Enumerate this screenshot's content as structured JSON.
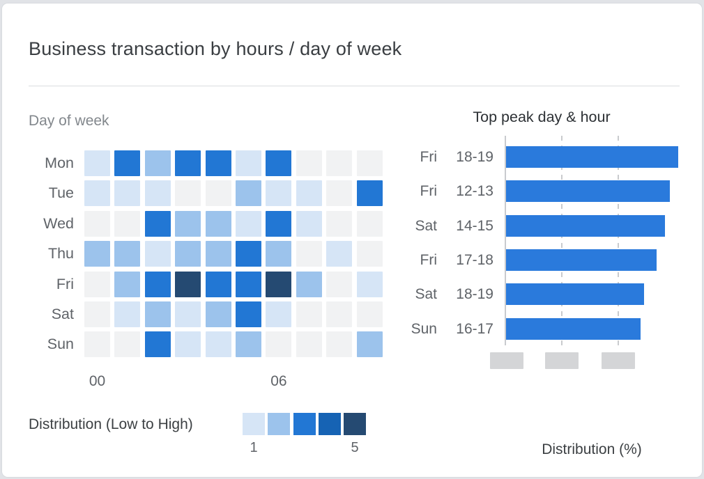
{
  "card": {
    "title": "Business transaction by hours / day of week"
  },
  "colors": {
    "bar_blue": "#2a7adc",
    "heatmap_palette": [
      "#d6e5f6",
      "#9cc3ec",
      "#2277d4",
      "#1663b4",
      "#254a72"
    ],
    "heatmap_empty": "#f1f2f3",
    "placeholder_gray": "#d4d5d7"
  },
  "chart_data": [
    {
      "type": "heatmap",
      "title": "Day of week",
      "rows": [
        "Mon",
        "Tue",
        "Wed",
        "Thu",
        "Fri",
        "Sat",
        "Sun"
      ],
      "n_cols": 10,
      "x_ticks": [
        {
          "col": 0,
          "label": "00"
        },
        {
          "col": 6,
          "label": "06"
        }
      ],
      "values": [
        [
          1,
          3,
          2,
          3,
          3,
          1,
          3,
          0,
          0,
          0
        ],
        [
          1,
          1,
          1,
          0,
          0,
          2,
          1,
          1,
          0,
          3
        ],
        [
          0,
          0,
          3,
          2,
          2,
          1,
          3,
          1,
          0,
          0
        ],
        [
          2,
          2,
          1,
          2,
          2,
          3,
          2,
          0,
          1,
          0
        ],
        [
          0,
          2,
          3,
          5,
          3,
          3,
          5,
          2,
          0,
          1
        ],
        [
          0,
          1,
          2,
          1,
          2,
          3,
          1,
          0,
          0,
          0
        ],
        [
          0,
          0,
          3,
          1,
          1,
          2,
          0,
          0,
          0,
          2
        ]
      ],
      "value_range": [
        1,
        5
      ],
      "zero_means": "empty",
      "legend": {
        "label": "Distribution (Low to High)",
        "min_label": "1",
        "max_label": "5"
      }
    },
    {
      "type": "bar",
      "orientation": "horizontal",
      "title": "Top peak day & hour",
      "xlabel": "Distribution (%)",
      "bars": [
        {
          "day": "Fri",
          "hours": "18-19",
          "relative_length": 1.0
        },
        {
          "day": "Fri",
          "hours": "12-13",
          "relative_length": 0.951
        },
        {
          "day": "Sat",
          "hours": "14-15",
          "relative_length": 0.923
        },
        {
          "day": "Fri",
          "hours": "17-18",
          "relative_length": 0.874
        },
        {
          "day": "Sat",
          "hours": "18-19",
          "relative_length": 0.802
        },
        {
          "day": "Sun",
          "hours": "16-17",
          "relative_length": 0.781
        }
      ],
      "axis": {
        "n_gridlines": 2,
        "gridline_style": "dashed",
        "tick_label_placeholders": 3
      },
      "legend_position": "none"
    }
  ]
}
